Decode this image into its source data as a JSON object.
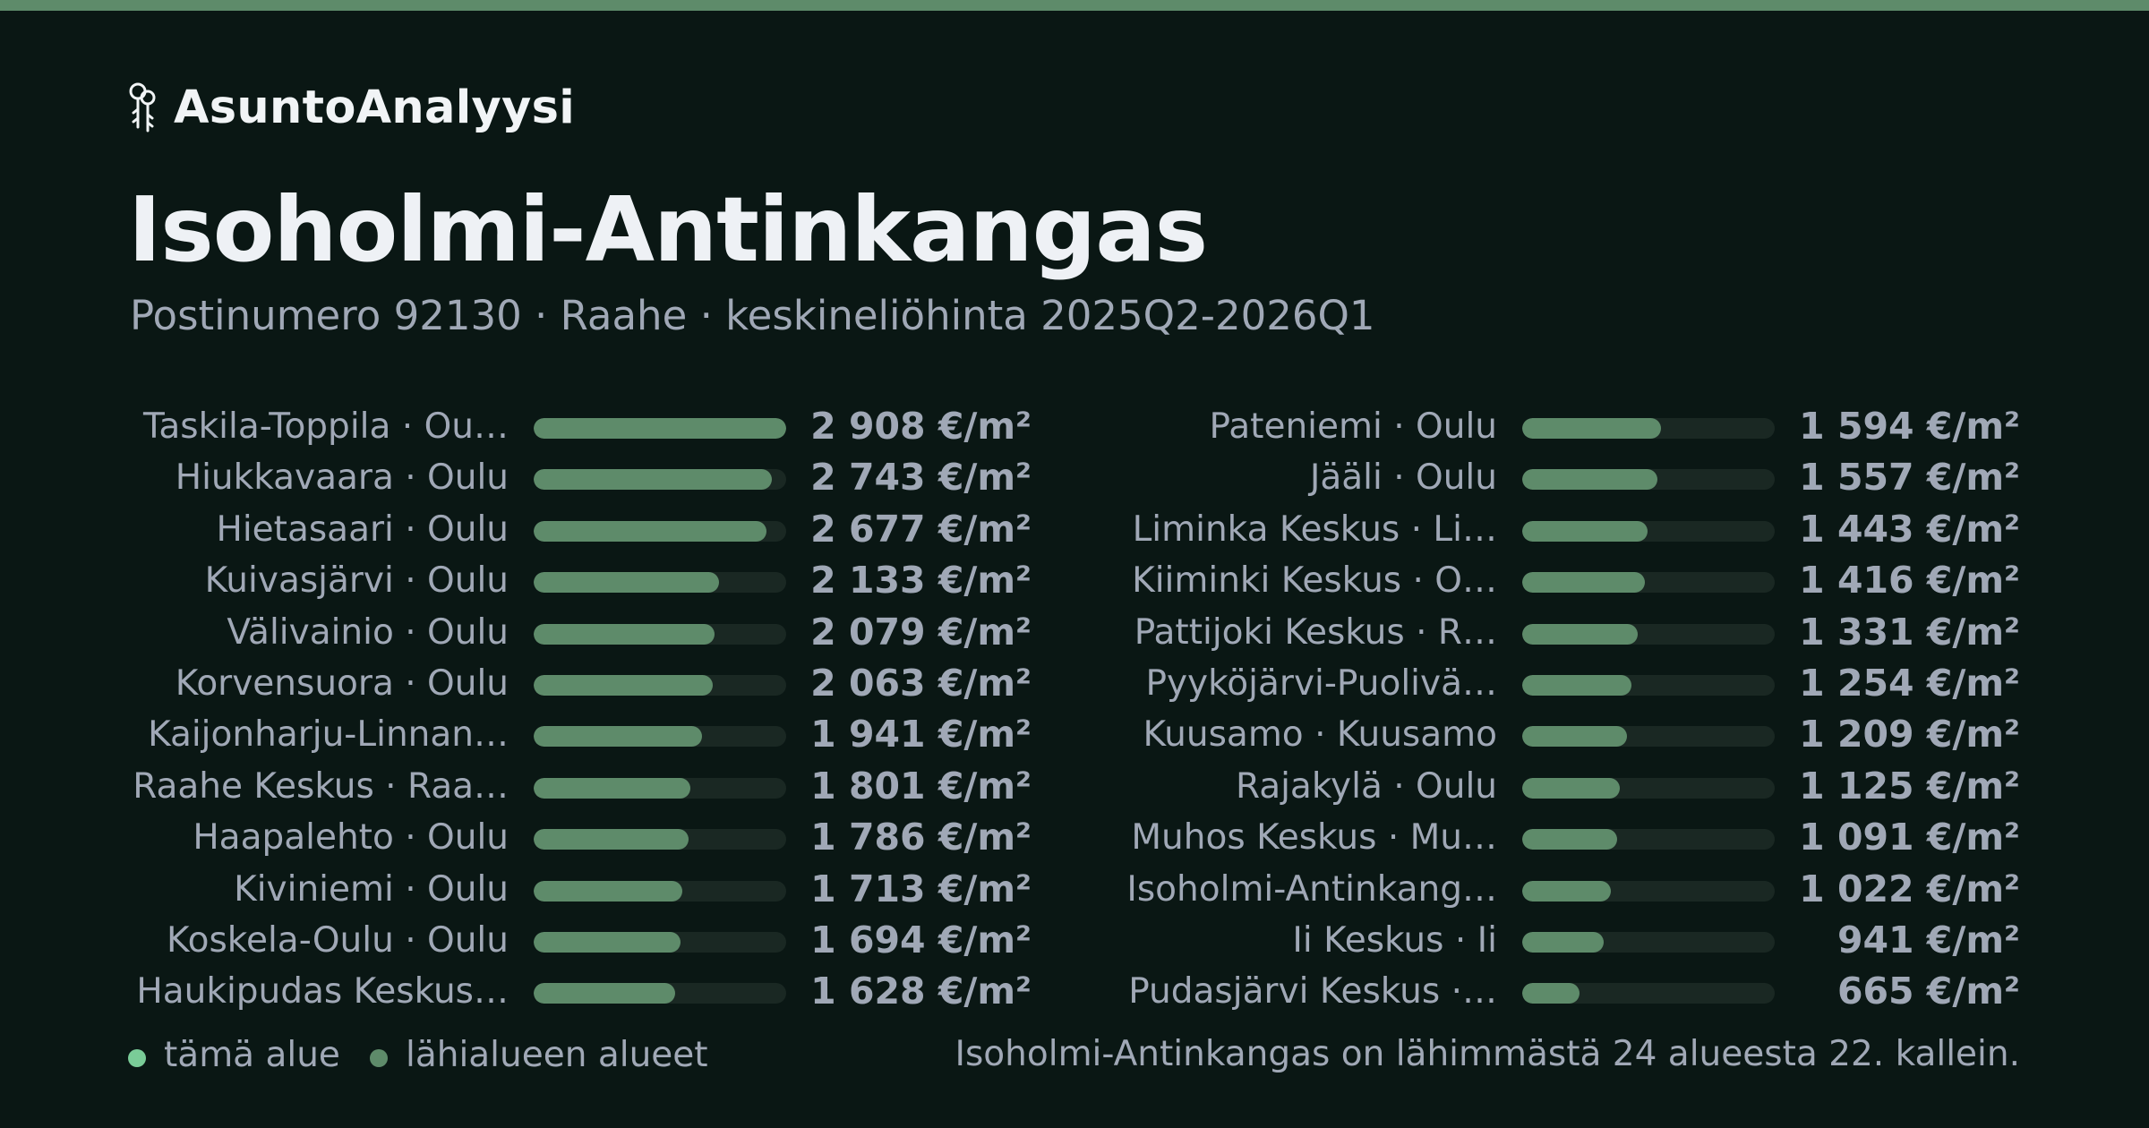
{
  "brand": {
    "name": "AsuntoAnalyysi",
    "icon": "keys-icon"
  },
  "header": {
    "title": "Isoholmi-Antinkangas",
    "subtitle": "Postinumero 92130 · Raahe · keskineliöhinta 2025Q2-2026Q1"
  },
  "colors": {
    "background": "#0a1714",
    "accent": "#5e8b6a",
    "highlight": "#7acc98",
    "track": "#1a2823",
    "muted_text": "#a0a8b6"
  },
  "chart_data": {
    "type": "bar",
    "orientation": "horizontal",
    "unit": "€/m²",
    "xlim": [
      0,
      2908
    ],
    "highlight": "Isoholmi-Antinkangas",
    "categories": [
      "Taskila-Toppila · Ou…",
      "Hiukkavaara · Oulu",
      "Hietasaari · Oulu",
      "Kuivasjärvi · Oulu",
      "Välivainio · Oulu",
      "Korvensuora · Oulu",
      "Kaijonharju-Linnan…",
      "Raahe Keskus · Raa…",
      "Haapalehto · Oulu",
      "Kiviniemi · Oulu",
      "Koskela-Oulu · Oulu",
      "Haukipudas Keskus…",
      "Pateniemi · Oulu",
      "Jääli · Oulu",
      "Liminka Keskus · Li…",
      "Kiiminki Keskus · O…",
      "Pattijoki Keskus · R…",
      "Pyyköjärvi-Puolivä…",
      "Kuusamo · Kuusamo",
      "Rajakylä · Oulu",
      "Muhos Keskus · Mu…",
      "Isoholmi-Antinkang…",
      "Ii Keskus · Ii",
      "Pudasjärvi Keskus ·…"
    ],
    "values": [
      2908,
      2743,
      2677,
      2133,
      2079,
      2063,
      1941,
      1801,
      1786,
      1713,
      1694,
      1628,
      1594,
      1557,
      1443,
      1416,
      1331,
      1254,
      1209,
      1125,
      1091,
      1022,
      941,
      665
    ],
    "value_labels": [
      "2 908 €/m²",
      "2 743 €/m²",
      "2 677 €/m²",
      "2 133 €/m²",
      "2 079 €/m²",
      "2 063 €/m²",
      "1 941 €/m²",
      "1 801 €/m²",
      "1 786 €/m²",
      "1 713 €/m²",
      "1 694 €/m²",
      "1 628 €/m²",
      "1 594 €/m²",
      "1 557 €/m²",
      "1 443 €/m²",
      "1 416 €/m²",
      "1 331 €/m²",
      "1 254 €/m²",
      "1 209 €/m²",
      "1 125 €/m²",
      "1 091 €/m²",
      "1 022 €/m²",
      "941 €/m²",
      "665 €/m²"
    ]
  },
  "legend": {
    "this_area": "tämä alue",
    "nearby": "lähialueen alueet"
  },
  "footer": {
    "rank_text": "Isoholmi-Antinkangas on lähimmästä 24 alueesta 22. kallein."
  }
}
